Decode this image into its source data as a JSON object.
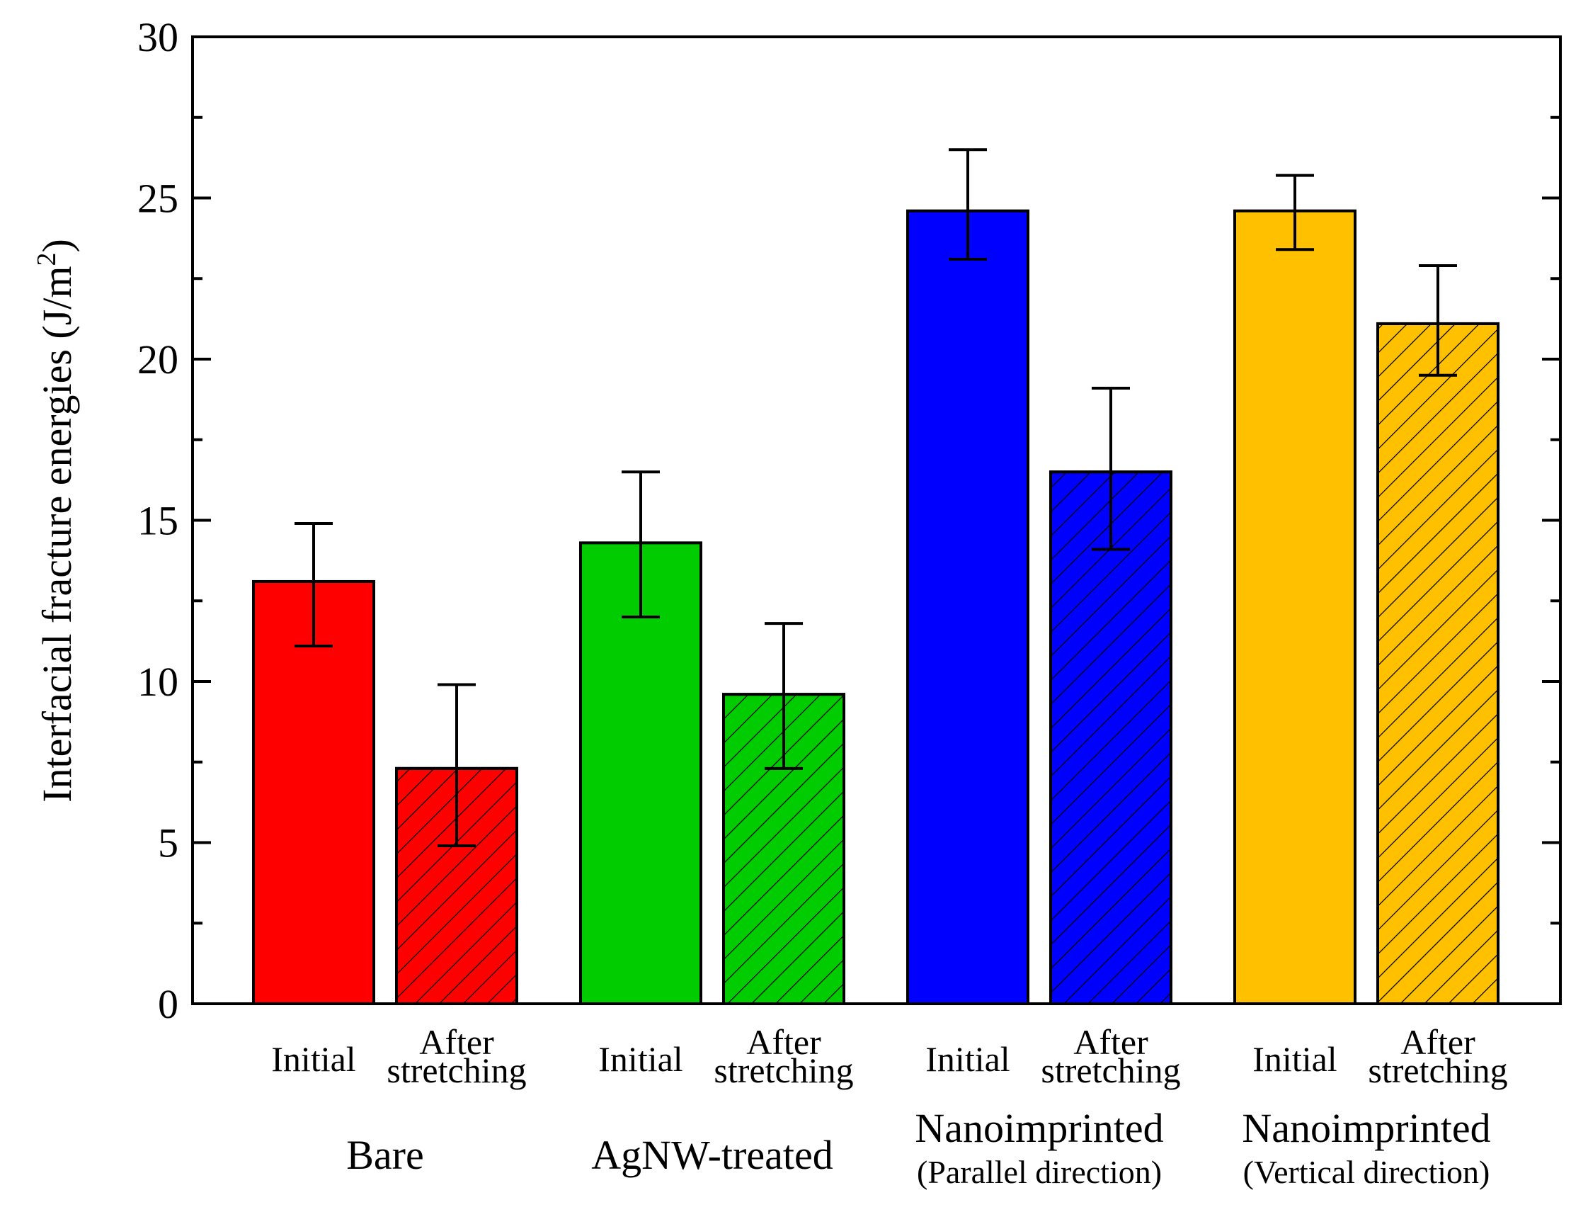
{
  "chart_data": {
    "type": "bar",
    "ylabel": "Interfacial fracture energies (J/m",
    "ylabel_sup": "2",
    "ylabel_close": ")",
    "ylim": [
      0,
      30
    ],
    "yticks": [
      "0",
      "5",
      "10",
      "15",
      "20",
      "25",
      "30"
    ],
    "grid": false,
    "bar_labels": {
      "initial": "Initial",
      "after_line1": "After",
      "after_line2": "stretching"
    },
    "groups": [
      {
        "name": "Bare",
        "subname": "",
        "color": "#ff0000",
        "bars": [
          {
            "condition": "Initial",
            "value": 13.1,
            "err_low": 11.1,
            "err_high": 14.9,
            "hatched": false
          },
          {
            "condition": "After stretching",
            "value": 7.3,
            "err_low": 4.9,
            "err_high": 9.9,
            "hatched": true
          }
        ]
      },
      {
        "name": "AgNW-treated",
        "subname": "",
        "color": "#00cc00",
        "bars": [
          {
            "condition": "Initial",
            "value": 14.3,
            "err_low": 12.0,
            "err_high": 16.5,
            "hatched": false
          },
          {
            "condition": "After stretching",
            "value": 9.6,
            "err_low": 7.3,
            "err_high": 11.8,
            "hatched": true
          }
        ]
      },
      {
        "name": "Nanoimprinted",
        "subname": "(Parallel direction)",
        "color": "#0000ff",
        "bars": [
          {
            "condition": "Initial",
            "value": 24.6,
            "err_low": 23.1,
            "err_high": 26.5,
            "hatched": false
          },
          {
            "condition": "After stretching",
            "value": 16.5,
            "err_low": 14.1,
            "err_high": 19.1,
            "hatched": true
          }
        ]
      },
      {
        "name": "Nanoimprinted",
        "subname": "(Vertical direction)",
        "color": "#ffc000",
        "bars": [
          {
            "condition": "Initial",
            "value": 24.6,
            "err_low": 23.4,
            "err_high": 25.7,
            "hatched": false
          },
          {
            "condition": "After stretching",
            "value": 21.1,
            "err_low": 19.5,
            "err_high": 22.9,
            "hatched": true
          }
        ]
      }
    ]
  }
}
